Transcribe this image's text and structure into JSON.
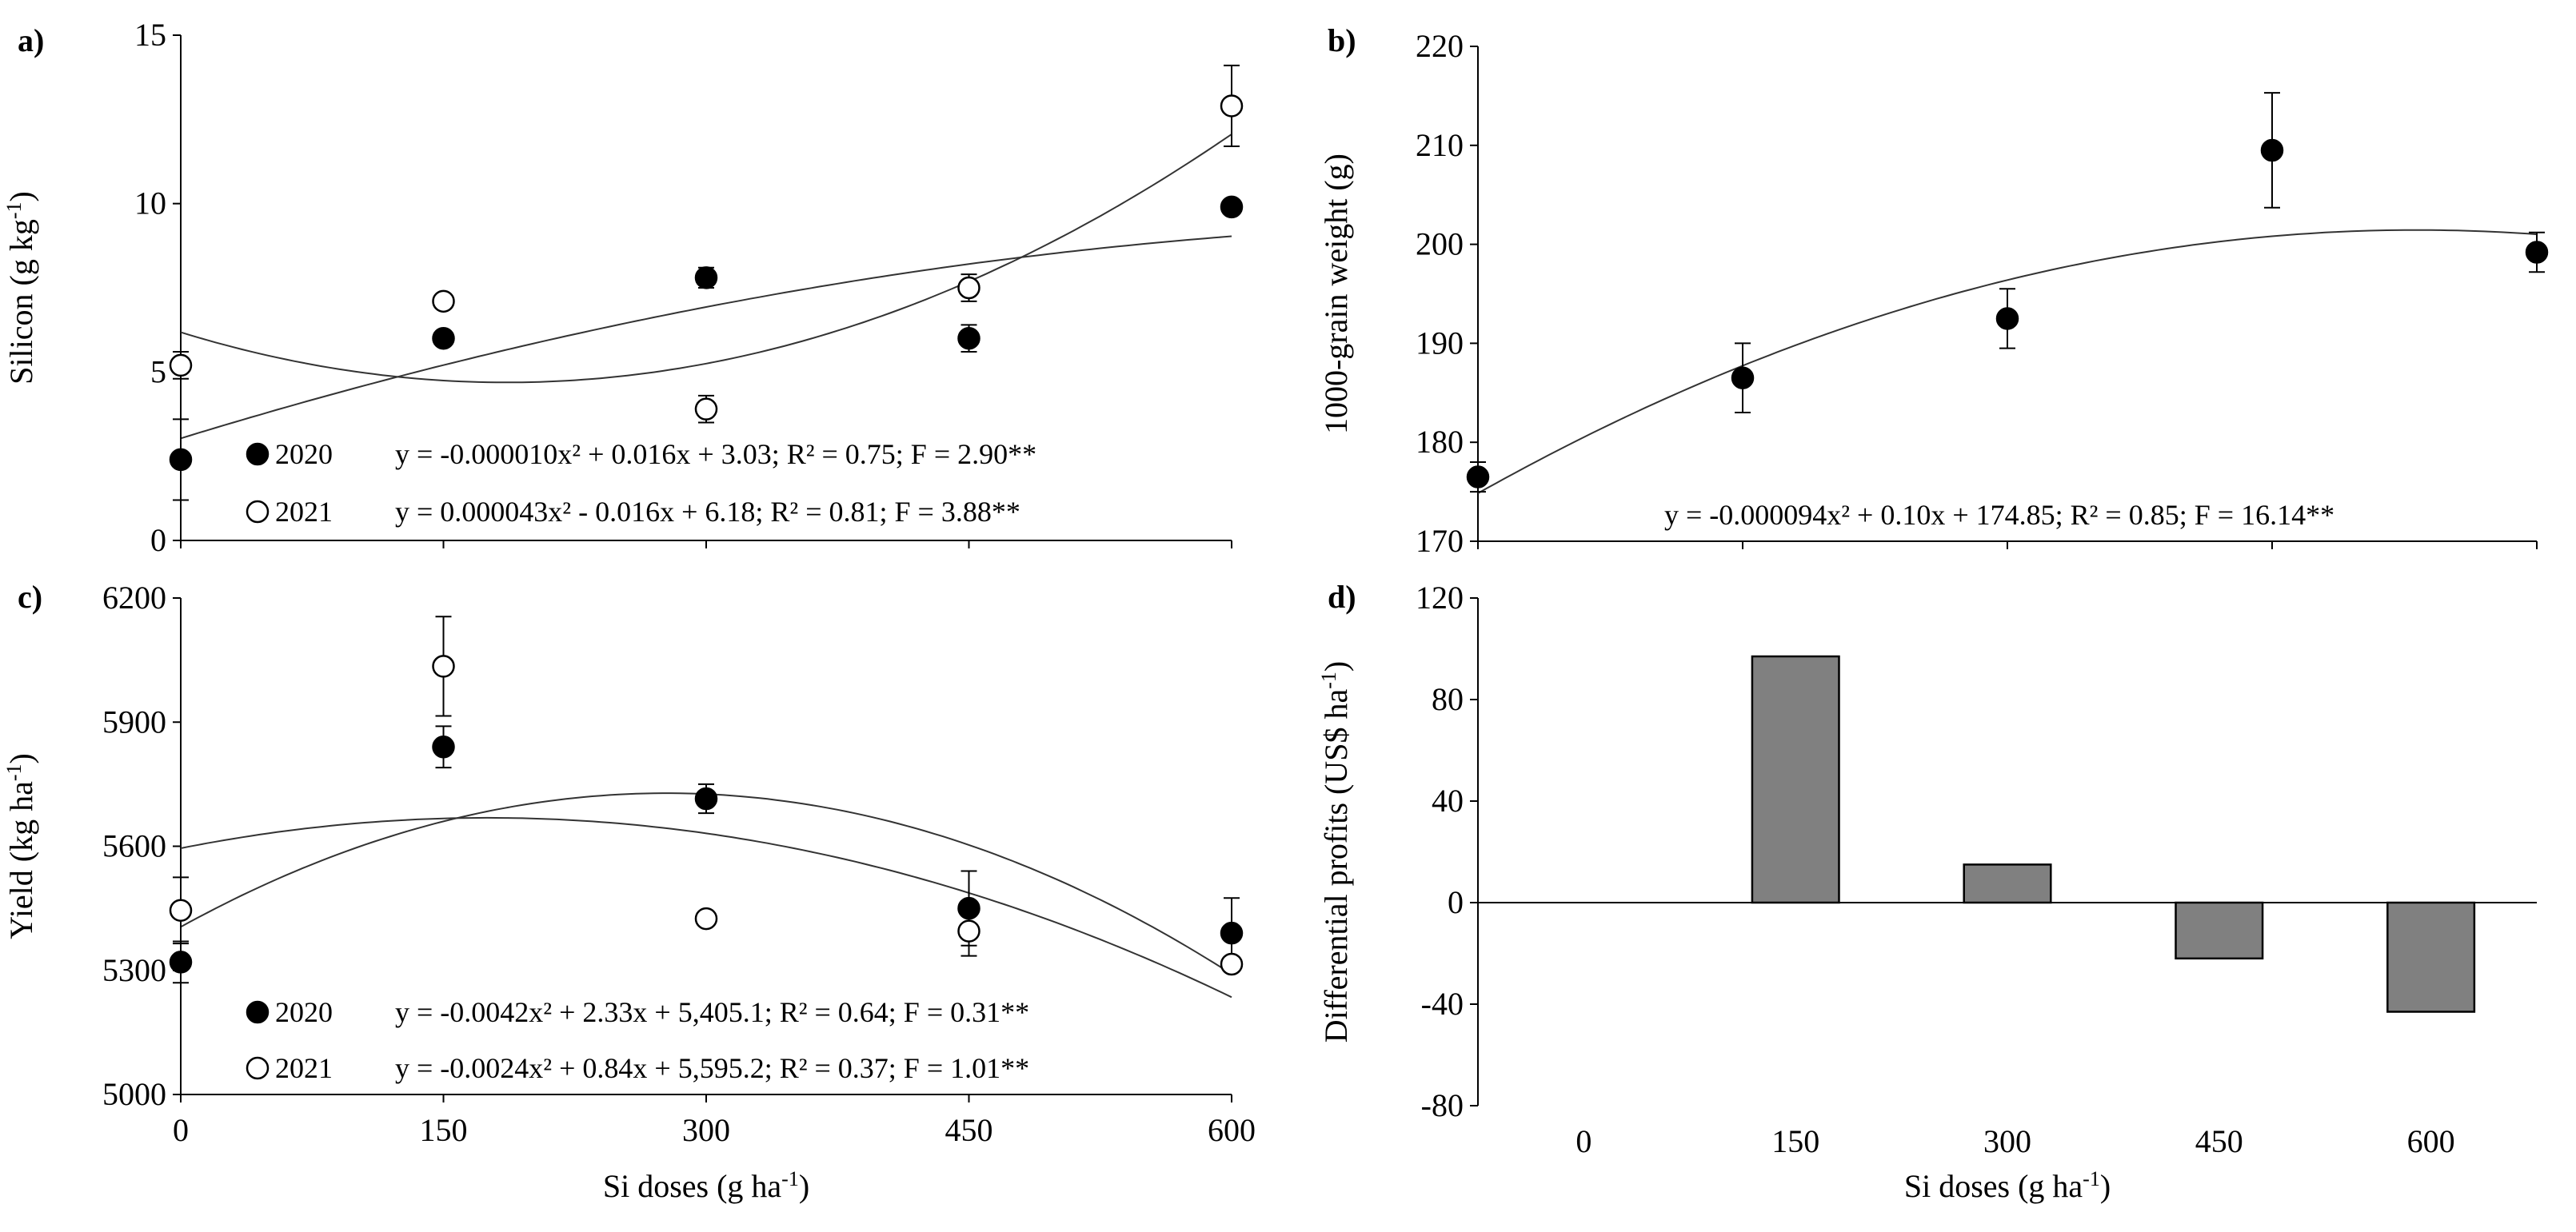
{
  "chart_data": [
    {
      "panel": "a)",
      "type": "scatter",
      "ylabel": "Silicon (g kg",
      "ylabel_sup": "-1",
      "ylabel_end": ")",
      "x": [
        0,
        150,
        300,
        450,
        600
      ],
      "xlim": [
        0,
        600
      ],
      "ylim": [
        0,
        15
      ],
      "yticks": [
        "0",
        "5",
        "10",
        "15"
      ],
      "series": [
        {
          "name": "2020",
          "marker": "filled",
          "values": [
            2.4,
            6.0,
            7.8,
            6.0,
            9.9
          ],
          "errors": [
            1.2,
            0.2,
            0.3,
            0.4,
            0.2
          ],
          "equation": "y = -0.000010x² + 0.016x + 3.03; R² = 0.75; F = 2.90**",
          "fit": [
            -1e-05,
            0.016,
            3.03
          ]
        },
        {
          "name": "2021",
          "marker": "open",
          "values": [
            5.2,
            7.1,
            3.9,
            7.5,
            12.9
          ],
          "errors": [
            0.4,
            0.2,
            0.4,
            0.4,
            1.2
          ],
          "equation": "y = 0.000043x² - 0.016x + 6.18; R² = 0.81; F = 3.88**",
          "fit": [
            4.3e-05,
            -0.016,
            6.18
          ]
        }
      ]
    },
    {
      "panel": "b)",
      "type": "scatter",
      "ylabel": "1000-grain weight (g)",
      "x": [
        0,
        150,
        300,
        450,
        600
      ],
      "xlim": [
        0,
        600
      ],
      "ylim": [
        170,
        220
      ],
      "yticks": [
        "170",
        "180",
        "190",
        "200",
        "210",
        "220"
      ],
      "series": [
        {
          "name": "",
          "marker": "filled",
          "values": [
            176.5,
            186.5,
            192.5,
            209.5,
            199.2
          ],
          "errors": [
            1.5,
            3.5,
            3.0,
            5.8,
            2.0
          ],
          "equation": "y = -0.000094x² + 0.10x + 174.85; R² = 0.85; F = 16.14**",
          "fit": [
            -9.4e-05,
            0.1,
            174.85
          ]
        }
      ]
    },
    {
      "panel": "c)",
      "type": "scatter",
      "ylabel": "Yield (kg ha",
      "ylabel_sup": "-1",
      "ylabel_end": ")",
      "x": [
        0,
        150,
        300,
        450,
        600
      ],
      "xlim": [
        0,
        600
      ],
      "ylim": [
        5000,
        6200
      ],
      "yticks": [
        "5000",
        "5300",
        "5600",
        "5900",
        "6200"
      ],
      "xticks": [
        "0",
        "150",
        "300",
        "450",
        "600"
      ],
      "xlabel": "Si doses (g ha",
      "xlabel_sup": "-1",
      "xlabel_end": ")",
      "series": [
        {
          "name": "2020",
          "marker": "filled",
          "values": [
            5320,
            5840,
            5715,
            5450,
            5390
          ],
          "errors": [
            50,
            50,
            35,
            90,
            85
          ],
          "equation": "y = -0.0042x² + 2.33x + 5,405.1; R² = 0.64; F = 0.31**",
          "fit": [
            -0.0042,
            2.33,
            5405.1
          ]
        },
        {
          "name": "2021",
          "marker": "open",
          "values": [
            5445,
            6035,
            5425,
            5395,
            5315
          ],
          "errors": [
            80,
            120,
            0,
            60,
            0
          ],
          "equation": "y = -0.0024x² + 0.84x + 5,595.2; R² = 0.37; F = 1.01**",
          "fit": [
            -0.0024,
            0.84,
            5595.2
          ]
        }
      ]
    },
    {
      "panel": "d)",
      "type": "bar",
      "ylabel": "Differential profits (US$ ha",
      "ylabel_sup": "-1",
      "ylabel_end": ")",
      "categories": [
        "0",
        "150",
        "300",
        "450",
        "600"
      ],
      "values": [
        0,
        97,
        15,
        -22,
        -43
      ],
      "ylim": [
        -80,
        120
      ],
      "yticks": [
        "-80",
        "-40",
        "0",
        "40",
        "80",
        "120"
      ],
      "xlabel": "Si doses (g ha",
      "xlabel_sup": "-1",
      "xlabel_end": ")",
      "bar_color": "#808080"
    }
  ]
}
